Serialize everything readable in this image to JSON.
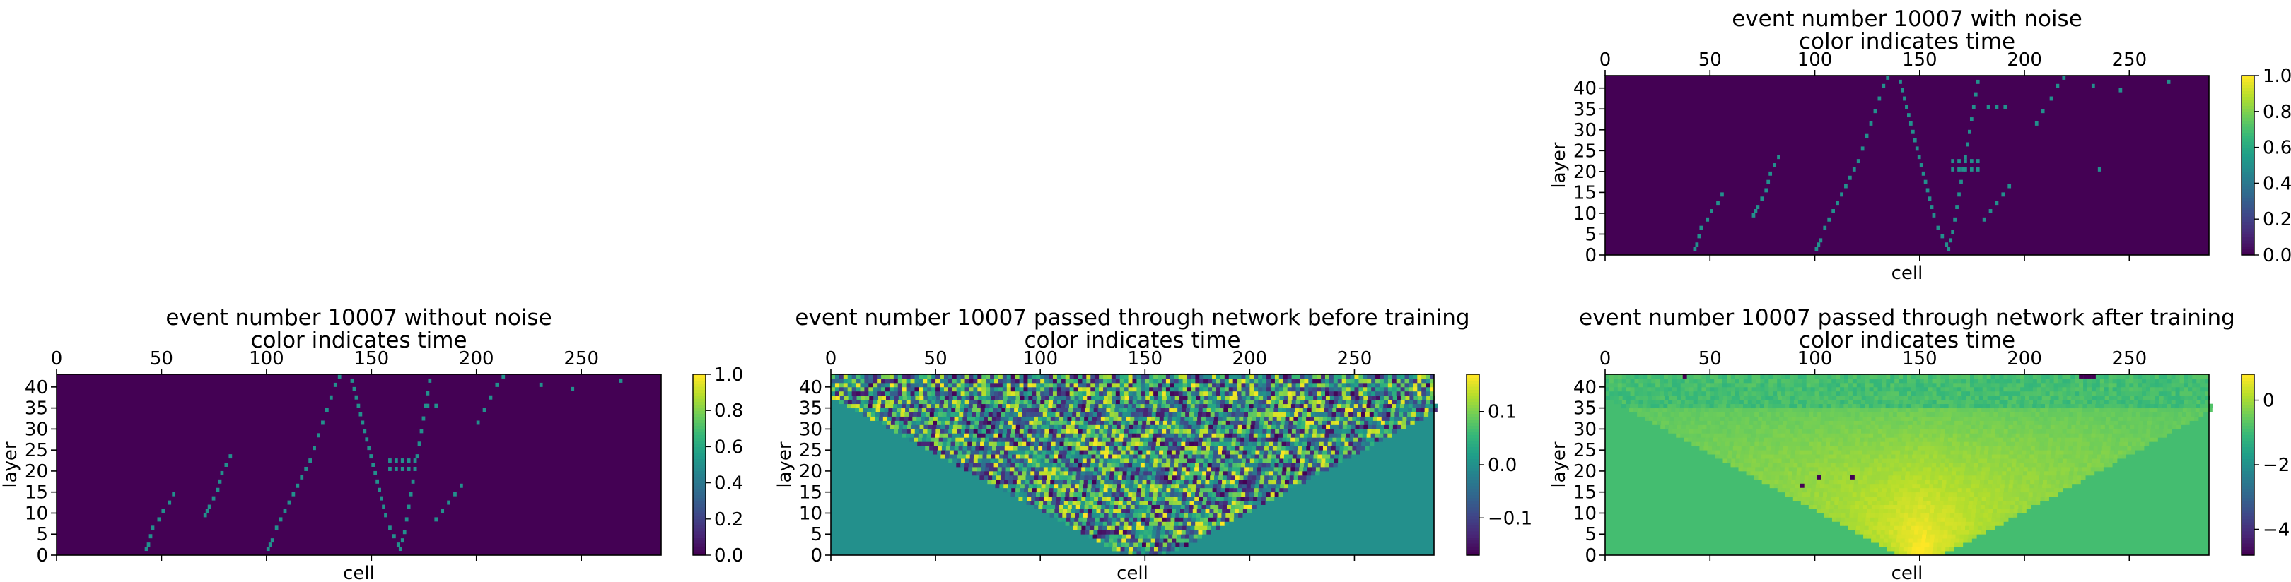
{
  "chart_data": [
    {
      "type": "heatmap",
      "title": "event number 10007 with noise",
      "subtitle": "color indicates time",
      "xlabel": "cell",
      "ylabel": "layer",
      "xlim": [
        0,
        288
      ],
      "ylim": [
        0,
        43
      ],
      "xticks": [
        0,
        50,
        100,
        150,
        200,
        250
      ],
      "yticks": [
        0,
        5,
        10,
        15,
        20,
        25,
        30,
        35,
        40
      ],
      "xaxis_position": "top",
      "colormap": "viridis",
      "background_value": 0.0,
      "hit_value": 0.5,
      "colorbar": {
        "range": [
          0.0,
          1.0
        ],
        "ticks": [
          "0.0",
          "0.2",
          "0.4",
          "0.6",
          "0.8",
          "1.0"
        ]
      },
      "hits": [
        [
          42,
          1
        ],
        [
          43,
          2
        ],
        [
          44,
          4
        ],
        [
          45,
          6
        ],
        [
          48,
          8
        ],
        [
          50,
          10
        ],
        [
          53,
          12
        ],
        [
          55,
          14
        ],
        [
          70,
          9
        ],
        [
          71,
          10
        ],
        [
          72,
          11
        ],
        [
          74,
          13
        ],
        [
          76,
          15
        ],
        [
          77,
          17
        ],
        [
          78,
          19
        ],
        [
          80,
          21
        ],
        [
          82,
          23
        ],
        [
          100,
          1
        ],
        [
          101,
          2
        ],
        [
          102,
          3
        ],
        [
          104,
          6
        ],
        [
          106,
          8
        ],
        [
          108,
          10
        ],
        [
          110,
          12
        ],
        [
          112,
          14
        ],
        [
          114,
          16
        ],
        [
          116,
          18
        ],
        [
          118,
          20
        ],
        [
          120,
          22
        ],
        [
          122,
          25
        ],
        [
          124,
          28
        ],
        [
          126,
          31
        ],
        [
          128,
          34
        ],
        [
          130,
          37
        ],
        [
          132,
          40
        ],
        [
          134,
          42
        ],
        [
          140,
          41
        ],
        [
          141,
          39
        ],
        [
          142,
          37
        ],
        [
          143,
          35
        ],
        [
          144,
          33
        ],
        [
          145,
          31
        ],
        [
          146,
          29
        ],
        [
          147,
          27
        ],
        [
          148,
          25
        ],
        [
          149,
          23
        ],
        [
          150,
          21
        ],
        [
          151,
          19
        ],
        [
          152,
          17
        ],
        [
          153,
          15
        ],
        [
          154,
          13
        ],
        [
          155,
          11
        ],
        [
          156,
          9
        ],
        [
          158,
          6
        ],
        [
          160,
          4
        ],
        [
          162,
          2
        ],
        [
          163,
          1
        ],
        [
          164,
          3
        ],
        [
          165,
          5
        ],
        [
          166,
          8
        ],
        [
          167,
          11
        ],
        [
          168,
          14
        ],
        [
          169,
          17
        ],
        [
          170,
          20
        ],
        [
          171,
          23
        ],
        [
          172,
          26
        ],
        [
          173,
          29
        ],
        [
          174,
          32
        ],
        [
          175,
          35
        ],
        [
          176,
          38
        ],
        [
          177,
          41
        ],
        [
          165,
          22
        ],
        [
          168,
          22
        ],
        [
          171,
          22
        ],
        [
          174,
          22
        ],
        [
          177,
          22
        ],
        [
          165,
          20
        ],
        [
          168,
          20
        ],
        [
          171,
          20
        ],
        [
          174,
          20
        ],
        [
          177,
          20
        ],
        [
          180,
          8
        ],
        [
          183,
          10
        ],
        [
          186,
          12
        ],
        [
          189,
          14
        ],
        [
          192,
          16
        ],
        [
          205,
          31
        ],
        [
          208,
          34
        ],
        [
          212,
          37
        ],
        [
          215,
          40
        ],
        [
          218,
          42
        ],
        [
          182,
          35
        ],
        [
          186,
          35
        ],
        [
          190,
          35
        ],
        [
          232,
          40
        ],
        [
          245,
          39
        ],
        [
          268,
          41
        ],
        [
          235,
          20
        ]
      ]
    },
    {
      "type": "heatmap",
      "title": "event number 10007 without noise",
      "subtitle": "color indicates time",
      "xlabel": "cell",
      "ylabel": "layer",
      "xlim": [
        0,
        288
      ],
      "ylim": [
        0,
        43
      ],
      "xticks": [
        0,
        50,
        100,
        150,
        200,
        250
      ],
      "yticks": [
        0,
        5,
        10,
        15,
        20,
        25,
        30,
        35,
        40
      ],
      "xaxis_position": "top",
      "colormap": "viridis",
      "background_value": 0.0,
      "hit_value": 0.5,
      "colorbar": {
        "range": [
          0.0,
          1.0
        ],
        "ticks": [
          "0.0",
          "0.2",
          "0.4",
          "0.6",
          "0.8",
          "1.0"
        ]
      },
      "hits": [
        [
          42,
          1
        ],
        [
          43,
          2
        ],
        [
          44,
          4
        ],
        [
          45,
          6
        ],
        [
          48,
          8
        ],
        [
          50,
          10
        ],
        [
          53,
          12
        ],
        [
          55,
          14
        ],
        [
          70,
          9
        ],
        [
          71,
          10
        ],
        [
          72,
          11
        ],
        [
          74,
          13
        ],
        [
          76,
          15
        ],
        [
          77,
          17
        ],
        [
          78,
          19
        ],
        [
          80,
          21
        ],
        [
          82,
          23
        ],
        [
          100,
          1
        ],
        [
          101,
          2
        ],
        [
          102,
          3
        ],
        [
          104,
          6
        ],
        [
          106,
          8
        ],
        [
          108,
          10
        ],
        [
          110,
          12
        ],
        [
          112,
          14
        ],
        [
          114,
          16
        ],
        [
          116,
          18
        ],
        [
          118,
          20
        ],
        [
          120,
          22
        ],
        [
          122,
          25
        ],
        [
          124,
          28
        ],
        [
          126,
          31
        ],
        [
          128,
          34
        ],
        [
          130,
          37
        ],
        [
          132,
          40
        ],
        [
          134,
          42
        ],
        [
          140,
          41
        ],
        [
          141,
          39
        ],
        [
          142,
          37
        ],
        [
          143,
          35
        ],
        [
          144,
          33
        ],
        [
          145,
          31
        ],
        [
          146,
          29
        ],
        [
          147,
          27
        ],
        [
          148,
          25
        ],
        [
          149,
          23
        ],
        [
          150,
          21
        ],
        [
          151,
          19
        ],
        [
          152,
          17
        ],
        [
          153,
          15
        ],
        [
          154,
          13
        ],
        [
          155,
          11
        ],
        [
          156,
          9
        ],
        [
          158,
          6
        ],
        [
          160,
          4
        ],
        [
          162,
          2
        ],
        [
          163,
          1
        ],
        [
          164,
          3
        ],
        [
          165,
          5
        ],
        [
          166,
          8
        ],
        [
          167,
          11
        ],
        [
          168,
          14
        ],
        [
          169,
          17
        ],
        [
          170,
          20
        ],
        [
          171,
          23
        ],
        [
          172,
          26
        ],
        [
          173,
          29
        ],
        [
          174,
          32
        ],
        [
          175,
          35
        ],
        [
          176,
          38
        ],
        [
          177,
          41
        ],
        [
          158,
          22
        ],
        [
          161,
          22
        ],
        [
          164,
          22
        ],
        [
          167,
          22
        ],
        [
          170,
          22
        ],
        [
          158,
          20
        ],
        [
          161,
          20
        ],
        [
          164,
          20
        ],
        [
          167,
          20
        ],
        [
          170,
          20
        ],
        [
          180,
          8
        ],
        [
          183,
          10
        ],
        [
          186,
          12
        ],
        [
          189,
          14
        ],
        [
          192,
          16
        ],
        [
          200,
          31
        ],
        [
          203,
          34
        ],
        [
          206,
          37
        ],
        [
          209,
          40
        ],
        [
          212,
          42
        ],
        [
          176,
          35
        ],
        [
          180,
          35
        ],
        [
          230,
          40
        ],
        [
          245,
          39
        ],
        [
          268,
          41
        ]
      ]
    },
    {
      "type": "heatmap",
      "title": "event number 10007 passed through network before training",
      "subtitle": "color indicates time",
      "xlabel": "cell",
      "ylabel": "layer",
      "xlim": [
        0,
        288
      ],
      "ylim": [
        0,
        43
      ],
      "xticks": [
        0,
        50,
        100,
        150,
        200,
        250
      ],
      "yticks": [
        0,
        5,
        10,
        15,
        20,
        25,
        30,
        35,
        40
      ],
      "xaxis_position": "top",
      "colormap": "viridis",
      "background_value": 0.0,
      "value_range": [
        -0.17,
        0.17
      ],
      "region": "noisy values inside an inverted triangle with apex near cell 150 at layer 0, spanning all cells at layer 43",
      "colorbar": {
        "range": [
          -0.17,
          0.17
        ],
        "ticks": [
          "−0.1",
          "0.0",
          "0.1"
        ]
      }
    },
    {
      "type": "heatmap",
      "title": "event number 10007 passed through network after training",
      "subtitle": "color indicates time",
      "xlabel": "cell",
      "ylabel": "layer",
      "xlim": [
        0,
        288
      ],
      "ylim": [
        0,
        43
      ],
      "xticks": [
        0,
        50,
        100,
        150,
        200,
        250
      ],
      "yticks": [
        0,
        5,
        10,
        15,
        20,
        25,
        30,
        35,
        40
      ],
      "xaxis_position": "top",
      "colormap": "viridis",
      "background_value": -0.9,
      "value_range": [
        -4.8,
        0.8
      ],
      "region": "brighter inverted triangle with apex near cell 150 at layer 0",
      "dark_spots": [
        [
          37,
          42
        ],
        [
          226,
          42
        ],
        [
          228,
          42
        ],
        [
          230,
          42
        ],
        [
          232,
          42
        ],
        [
          101,
          18
        ],
        [
          117,
          18
        ],
        [
          93,
          16
        ]
      ],
      "colorbar": {
        "range": [
          -4.8,
          0.8
        ],
        "ticks": [
          "−4",
          "−2",
          "0"
        ]
      }
    }
  ]
}
